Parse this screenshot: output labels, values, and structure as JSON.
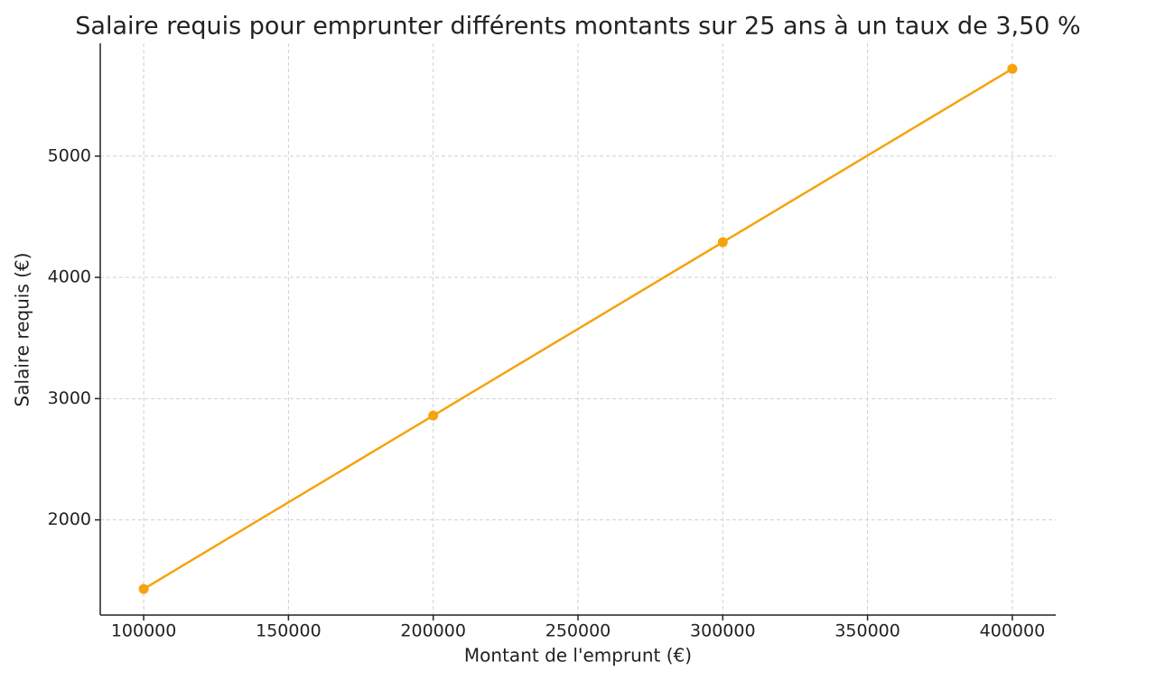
{
  "chart_data": {
    "type": "line",
    "title": "Salaire requis pour emprunter différents montants sur 25 ans à un taux de 3,50 %",
    "x_label": "Montant de l'emprunt (€)",
    "y_label": "Salaire requis (€)",
    "x": [
      100000,
      200000,
      300000,
      400000
    ],
    "series": [
      {
        "name": "Salaire requis",
        "color": "#f5a30c",
        "values": [
          1430,
          2860,
          4290,
          5720
        ]
      }
    ],
    "xlim": [
      85000,
      415000
    ],
    "xticks": [
      100000,
      150000,
      200000,
      250000,
      300000,
      350000,
      400000
    ],
    "ylim": [
      1215,
      5930
    ],
    "yticks": [
      2000,
      3000,
      4000,
      5000
    ],
    "grid": true
  }
}
